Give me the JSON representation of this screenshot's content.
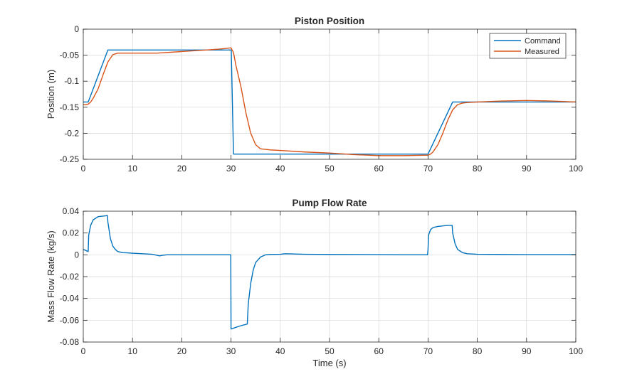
{
  "colors": {
    "command": "#0072bd",
    "measured": "#d95319",
    "flow": "#0072bd",
    "grid": "#d6d6d6",
    "axis": "#262626"
  },
  "chart_data": [
    {
      "type": "line",
      "title": "Piston Position",
      "xlabel": "",
      "ylabel": "Position (m)",
      "xlim": [
        0,
        100
      ],
      "ylim": [
        -0.25,
        0
      ],
      "xticks": [
        0,
        10,
        20,
        30,
        40,
        50,
        60,
        70,
        80,
        90,
        100
      ],
      "yticks": [
        0,
        -0.05,
        -0.1,
        -0.15,
        -0.2,
        -0.25
      ],
      "xtick_labels": [
        "0",
        "10",
        "20",
        "30",
        "40",
        "50",
        "60",
        "70",
        "80",
        "90",
        "100"
      ],
      "ytick_labels": [
        "0",
        "-0.05",
        "-0.1",
        "-0.15",
        "-0.2",
        "-0.25"
      ],
      "grid": true,
      "legend": "top-right",
      "series": [
        {
          "name": "Command",
          "color": "#0072bd",
          "x": [
            0,
            1,
            5,
            30,
            30.05,
            30.5,
            70,
            75,
            100
          ],
          "y": [
            -0.14,
            -0.14,
            -0.04,
            -0.04,
            -0.042,
            -0.24,
            -0.24,
            -0.14,
            -0.14
          ]
        },
        {
          "name": "Measured",
          "color": "#d95319",
          "x": [
            0,
            0.5,
            1,
            1.5,
            2,
            3,
            4,
            5,
            6,
            7,
            10,
            15,
            20,
            25,
            28,
            29,
            30,
            30.5,
            31,
            32,
            33,
            34,
            35,
            36,
            38,
            40,
            45,
            50,
            55,
            60,
            65,
            70,
            70.5,
            71,
            72,
            73,
            74,
            75,
            76,
            77,
            78,
            80,
            85,
            90,
            95,
            100
          ],
          "y": [
            -0.145,
            -0.145,
            -0.144,
            -0.14,
            -0.133,
            -0.115,
            -0.088,
            -0.063,
            -0.049,
            -0.046,
            -0.046,
            -0.046,
            -0.043,
            -0.04,
            -0.038,
            -0.037,
            -0.036,
            -0.045,
            -0.07,
            -0.11,
            -0.16,
            -0.2,
            -0.222,
            -0.23,
            -0.232,
            -0.233,
            -0.236,
            -0.238,
            -0.241,
            -0.243,
            -0.243,
            -0.242,
            -0.24,
            -0.236,
            -0.222,
            -0.2,
            -0.175,
            -0.155,
            -0.145,
            -0.142,
            -0.141,
            -0.14,
            -0.138,
            -0.137,
            -0.138,
            -0.14
          ]
        }
      ]
    },
    {
      "type": "line",
      "title": "Pump Flow Rate",
      "xlabel": "Time (s)",
      "ylabel": "Mass Flow Rate (kg/s)",
      "xlim": [
        0,
        100
      ],
      "ylim": [
        -0.08,
        0.04
      ],
      "xticks": [
        0,
        10,
        20,
        30,
        40,
        50,
        60,
        70,
        80,
        90,
        100
      ],
      "yticks": [
        0.04,
        0.02,
        0,
        -0.02,
        -0.04,
        -0.06,
        -0.08
      ],
      "xtick_labels": [
        "0",
        "10",
        "20",
        "30",
        "40",
        "50",
        "60",
        "70",
        "80",
        "90",
        "100"
      ],
      "ytick_labels": [
        "0.04",
        "0.02",
        "0",
        "-0.02",
        "-0.04",
        "-0.06",
        "-0.08"
      ],
      "grid": true,
      "legend": "none",
      "series": [
        {
          "color": "#0072bd",
          "x": [
            0,
            0.5,
            1,
            1.1,
            1.5,
            2,
            3,
            4,
            4.9,
            5,
            5.5,
            6,
            6.5,
            7,
            8,
            9,
            10,
            12,
            14,
            15.5,
            16,
            17,
            20,
            25,
            29.95,
            30,
            30.05,
            31,
            32,
            33.3,
            33.5,
            34,
            34.5,
            35,
            36,
            37,
            38,
            40,
            41,
            45,
            50,
            60,
            65,
            69.9,
            70,
            70.1,
            70.5,
            71,
            72,
            73,
            74,
            74.9,
            75,
            75.5,
            76,
            77,
            78,
            80,
            85,
            90,
            100
          ],
          "y": [
            0.005,
            0.004,
            0.003,
            0.018,
            0.027,
            0.032,
            0.035,
            0.0355,
            0.036,
            0.03,
            0.015,
            0.008,
            0.005,
            0.003,
            0.002,
            0.0018,
            0.0015,
            0.001,
            0.0005,
            -0.001,
            -0.0005,
            0,
            0,
            0,
            0,
            -0.068,
            -0.068,
            -0.0665,
            -0.065,
            -0.0635,
            -0.045,
            -0.026,
            -0.014,
            -0.007,
            -0.002,
            0,
            0.0003,
            0.0005,
            0.001,
            0.0005,
            0.0003,
            0.0002,
            0,
            0,
            0.005,
            0.018,
            0.023,
            0.025,
            0.026,
            0.0265,
            0.027,
            0.027,
            0.02,
            0.01,
            0.005,
            0.002,
            0.001,
            0.0005,
            0.0003,
            0.0002,
            0.0002
          ]
        }
      ]
    }
  ]
}
